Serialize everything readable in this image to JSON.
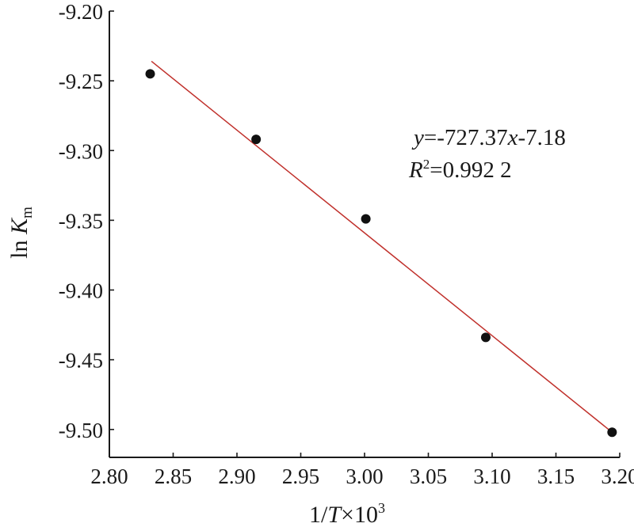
{
  "chart_data": {
    "type": "scatter",
    "title": "",
    "xlabel": {
      "pre": "1/",
      "var": "T",
      "post": "×10",
      "sup": "3"
    },
    "ylabel": {
      "pre": "ln ",
      "var": "K",
      "sub": "m"
    },
    "xlim": [
      2.8,
      3.2
    ],
    "ylim": [
      -9.52,
      -9.2
    ],
    "x_ticks": [
      "2.80",
      "2.85",
      "2.90",
      "2.95",
      "3.00",
      "3.05",
      "3.10",
      "3.15",
      "3.20"
    ],
    "y_ticks": [
      "-9.20",
      "-9.25",
      "-9.30",
      "-9.35",
      "-9.40",
      "-9.45",
      "-9.50"
    ],
    "x_tick_values": [
      2.8,
      2.85,
      2.9,
      2.95,
      3.0,
      3.05,
      3.1,
      3.15,
      3.2
    ],
    "y_tick_values": [
      -9.2,
      -9.25,
      -9.3,
      -9.35,
      -9.4,
      -9.45,
      -9.5
    ],
    "points": [
      {
        "x": 2.832,
        "y": -9.245
      },
      {
        "x": 2.915,
        "y": -9.292
      },
      {
        "x": 3.001,
        "y": -9.349
      },
      {
        "x": 3.095,
        "y": -9.434
      },
      {
        "x": 3.194,
        "y": -9.502
      }
    ],
    "fit_line": {
      "x": [
        2.833,
        3.194
      ],
      "y": [
        -9.236,
        -9.502
      ],
      "color": "#c0302b"
    },
    "equation": {
      "y_var": "y",
      "eq_rest": "=-727.37",
      "x_var": "x",
      "eq_tail": "-7.18"
    },
    "r_squared": {
      "var": "R",
      "sup": "2",
      "value": "=0.992 2"
    },
    "marker_color": "#111111",
    "grid": false
  }
}
